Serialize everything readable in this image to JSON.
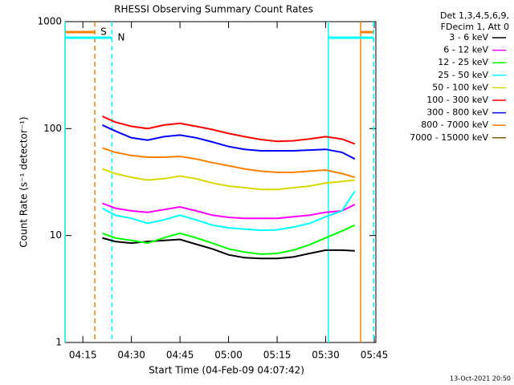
{
  "chart_data": {
    "type": "line",
    "title": "RHESSI Observing Summary Count Rates",
    "x_label": "Start Time (04-Feb-09 04:07:42)",
    "y_label": "Count Rate (s⁻¹ detector⁻¹)",
    "legend_header": [
      "Det 1,3,4,5,6,9,",
      "FDecim 1, Att 0"
    ],
    "footer": "13-Oct-2021 20:50",
    "log_y": true,
    "xlim": [
      9.5,
      105.5
    ],
    "ylim": [
      1,
      1000
    ],
    "xticks": [
      {
        "value": 15,
        "label": "04:15"
      },
      {
        "value": 30,
        "label": "04:30"
      },
      {
        "value": 45,
        "label": "04:45"
      },
      {
        "value": 60,
        "label": "05:00"
      },
      {
        "value": 75,
        "label": "05:15"
      },
      {
        "value": 90,
        "label": "05:30"
      },
      {
        "value": 105,
        "label": "05:45"
      }
    ],
    "yticks": [
      1,
      10,
      100,
      1000
    ],
    "x": [
      21,
      25,
      30,
      35,
      40,
      45,
      50,
      55,
      60,
      65,
      70,
      75,
      80,
      85,
      90,
      95,
      99
    ],
    "series": [
      {
        "name": "3 - 6 keV",
        "color": "#000000",
        "values": [
          9.5,
          8.8,
          8.5,
          8.8,
          9,
          9.2,
          8.3,
          7.5,
          6.6,
          6.2,
          6.1,
          6.1,
          6.3,
          6.8,
          7.3,
          7.3,
          7.2
        ]
      },
      {
        "name": "6 - 12 keV",
        "color": "#ff00ff",
        "values": [
          20,
          18,
          17,
          16.5,
          17.5,
          18.5,
          17,
          15.5,
          14.8,
          14.5,
          14.5,
          14.5,
          15,
          15.5,
          16.5,
          17,
          19.5
        ]
      },
      {
        "name": "12 - 25 keV",
        "color": "#00ff00",
        "values": [
          10.5,
          9.5,
          9,
          8.5,
          9.5,
          10.5,
          9.5,
          8.5,
          7.5,
          7,
          6.7,
          6.8,
          7.3,
          8.2,
          9.5,
          11,
          12.5
        ]
      },
      {
        "name": "25 - 50 keV",
        "color": "#00ffff",
        "values": [
          18,
          15.5,
          14.5,
          13,
          14,
          15.5,
          14,
          12.5,
          11.8,
          11.5,
          11.2,
          11.3,
          12,
          13,
          15,
          17,
          26
        ]
      },
      {
        "name": "50 - 100 keV",
        "color": "#d8d800",
        "values": [
          42,
          38,
          35,
          33,
          34,
          36,
          34,
          31,
          29,
          28,
          27,
          27,
          28,
          29,
          31,
          32,
          33
        ]
      },
      {
        "name": "100 - 300 keV",
        "color": "#ff0000",
        "values": [
          130,
          115,
          105,
          100,
          108,
          112,
          105,
          98,
          90,
          84,
          79,
          76,
          77,
          80,
          84,
          80,
          72
        ]
      },
      {
        "name": "300 - 800 keV",
        "color": "#0000ff",
        "values": [
          108,
          95,
          82,
          78,
          84,
          87,
          82,
          75,
          68,
          64,
          62,
          62,
          62,
          63,
          64,
          60,
          52
        ]
      },
      {
        "name": "800 - 7000 keV",
        "color": "#ff8000",
        "values": [
          66,
          60,
          56,
          54,
          54,
          55,
          52,
          48,
          45,
          42,
          40,
          39,
          39,
          40,
          41,
          38,
          35
        ]
      },
      {
        "name": "7000 - 15000 keV",
        "color": "#806000",
        "values": [
          null,
          null,
          null,
          null,
          null,
          null,
          null,
          null,
          null,
          null,
          null,
          null,
          null,
          null,
          null,
          null,
          null
        ]
      }
    ],
    "intervals": [
      {
        "name": "S",
        "color": "#ff8000",
        "spans": [
          [
            9.5,
            18.7
          ],
          [
            100.8,
            104.8
          ]
        ]
      },
      {
        "name": "N",
        "color": "#00ffff",
        "spans": [
          [
            9.5,
            24.0
          ],
          [
            90.8,
            104.8
          ]
        ]
      }
    ]
  }
}
